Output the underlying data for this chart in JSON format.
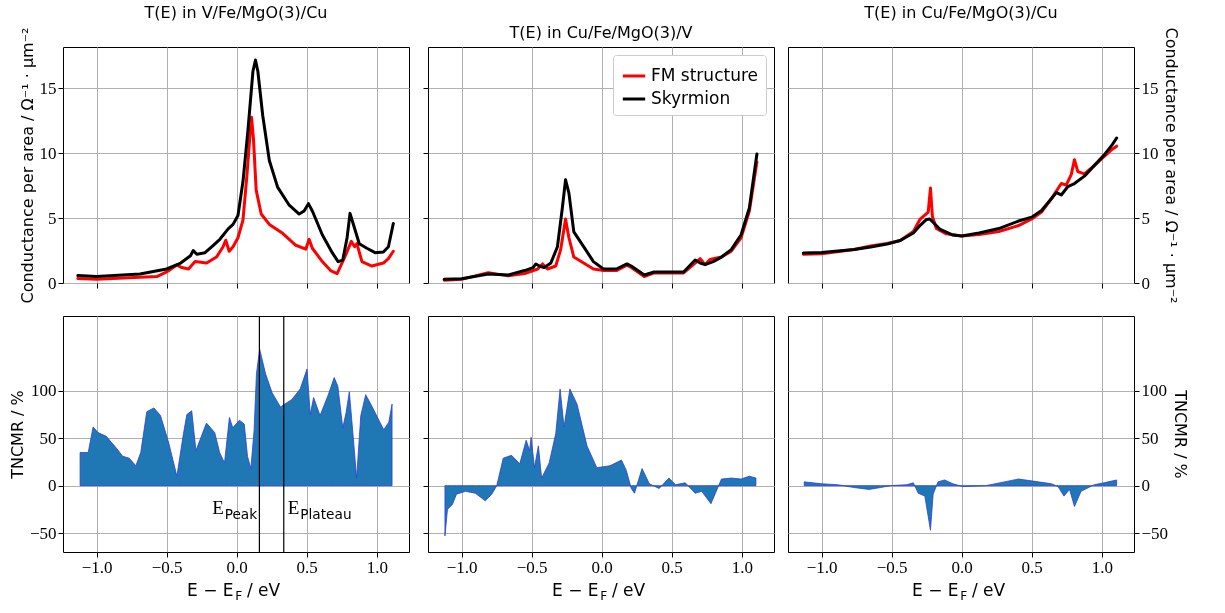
{
  "chart_data": [
    {
      "type": "line",
      "title": "T(E) in V/Fe/MgO(3)/Cu",
      "ylabel": "Conductance per area / Ω⁻¹ · μm⁻²",
      "xlim": [
        -1.24,
        1.23
      ],
      "xticks": [
        -1,
        -0.5,
        0,
        0.5,
        1
      ],
      "ylim": [
        0,
        18.2
      ],
      "yticks": [
        0,
        5,
        10,
        15
      ],
      "grid": true,
      "tick_labels": "y",
      "series": [
        {
          "color": "#ff0000",
          "x": [
            -1.134,
            -1.0,
            -0.69,
            -0.57,
            -0.5,
            -0.427,
            -0.392,
            -0.344,
            -0.297,
            -0.215,
            -0.144,
            -0.097,
            -0.078,
            -0.054,
            -0.026,
            0.009,
            0.045,
            0.073,
            0.097,
            0.106,
            0.12,
            0.139,
            0.175,
            0.233,
            0.328,
            0.422,
            0.493,
            0.517,
            0.54,
            0.611,
            0.67,
            0.717,
            0.776,
            0.818,
            0.842,
            0.858,
            0.894,
            0.965,
            1.047,
            1.083,
            1.118
          ],
          "values": [
            0.34,
            0.28,
            0.44,
            0.5,
            0.85,
            1.38,
            1.19,
            1.08,
            1.65,
            1.54,
            2.0,
            2.8,
            3.3,
            2.45,
            2.8,
            3.49,
            4.86,
            8.3,
            11.74,
            12.78,
            11.06,
            7.16,
            5.32,
            4.52,
            3.83,
            2.91,
            2.61,
            3.37,
            2.68,
            1.65,
            0.96,
            0.73,
            2.11,
            3.21,
            2.8,
            3.03,
            1.65,
            1.31,
            1.54,
            1.88,
            2.45
          ]
        },
        {
          "color": "#000000",
          "x": [
            -1.134,
            -1.0,
            -0.69,
            -0.5,
            -0.4,
            -0.33,
            -0.31,
            -0.285,
            -0.226,
            -0.167,
            -0.12,
            -0.061,
            -0.026,
            0.009,
            0.045,
            0.08,
            0.116,
            0.134,
            0.151,
            0.186,
            0.233,
            0.292,
            0.375,
            0.446,
            0.481,
            0.512,
            0.54,
            0.611,
            0.682,
            0.724,
            0.757,
            0.788,
            0.809,
            0.83,
            0.875,
            0.929,
            0.988,
            1.047,
            1.083,
            1.118
          ],
          "values": [
            0.57,
            0.5,
            0.69,
            1.08,
            1.54,
            2.1,
            2.5,
            2.22,
            2.34,
            2.9,
            3.37,
            4.17,
            4.52,
            5.2,
            7.84,
            11.74,
            16.33,
            17.2,
            16.33,
            12.9,
            9.45,
            7.39,
            6.0,
            5.32,
            5.55,
            6.12,
            5.55,
            3.72,
            2.34,
            1.65,
            1.77,
            3.49,
            5.37,
            4.63,
            3.03,
            2.68,
            2.34,
            2.39,
            2.8,
            4.59
          ]
        }
      ]
    },
    {
      "type": "line",
      "title": "T(E) in Cu/Fe/MgO(3)/V",
      "xlim": [
        -1.24,
        1.23
      ],
      "xticks": [
        -1,
        -0.5,
        0,
        0.5,
        1
      ],
      "ylim": [
        0,
        18.2
      ],
      "yticks": [
        0,
        5,
        10,
        15
      ],
      "grid": true,
      "tick_labels": false,
      "legend": "top right",
      "series": [
        {
          "name": "FM structure",
          "color": "#ff0000",
          "x": [
            -1.124,
            -1.0,
            -0.81,
            -0.667,
            -0.55,
            -0.457,
            -0.422,
            -0.387,
            -0.328,
            -0.293,
            -0.258,
            -0.234,
            -0.199,
            -0.129,
            -0.059,
            0.012,
            0.105,
            0.18,
            0.211,
            0.304,
            0.375,
            0.48,
            0.585,
            0.667,
            0.703,
            0.738,
            0.773,
            0.855,
            0.925,
            0.995,
            1.054,
            1.108
          ],
          "values": [
            0.21,
            0.28,
            0.8,
            0.55,
            0.73,
            1.08,
            1.47,
            1.08,
            1.31,
            2.57,
            4.93,
            3.49,
            2.0,
            1.54,
            1.08,
            0.96,
            0.96,
            1.38,
            1.19,
            0.5,
            0.78,
            0.78,
            0.78,
            1.54,
            1.88,
            1.42,
            1.81,
            2.0,
            2.45,
            3.49,
            5.55,
            9.33
          ]
        },
        {
          "name": "Skyrmion",
          "color": "#000000",
          "x": [
            -1.124,
            -1.0,
            -0.81,
            -0.667,
            -0.55,
            -0.49,
            -0.47,
            -0.445,
            -0.41,
            -0.363,
            -0.316,
            -0.281,
            -0.258,
            -0.234,
            -0.199,
            -0.129,
            -0.059,
            0.012,
            0.105,
            0.18,
            0.211,
            0.304,
            0.375,
            0.48,
            0.585,
            0.667,
            0.703,
            0.738,
            0.796,
            0.855,
            0.925,
            0.995,
            1.054,
            1.108
          ],
          "values": [
            0.28,
            0.32,
            0.69,
            0.62,
            0.96,
            1.19,
            1.47,
            1.31,
            1.19,
            1.54,
            2.8,
            5.78,
            7.96,
            6.93,
            3.94,
            2.8,
            1.65,
            1.08,
            1.08,
            1.47,
            1.31,
            0.62,
            0.85,
            0.85,
            0.85,
            1.77,
            1.54,
            1.42,
            1.65,
            2.0,
            2.57,
            3.72,
            5.78,
            9.95
          ]
        }
      ]
    },
    {
      "type": "line",
      "title": "T(E) in Cu/Fe/MgO(3)/Cu",
      "y2label": "Conductance per area / Ω⁻¹ · μm⁻²",
      "xlim": [
        -1.24,
        1.23
      ],
      "xticks": [
        -1,
        -0.5,
        0,
        0.5,
        1
      ],
      "y2lim": [
        0,
        18.2
      ],
      "y2ticks": [
        0,
        5,
        10,
        15
      ],
      "grid": true,
      "tick_labels": "y",
      "series": [
        {
          "color": "#ff0000",
          "axis": "y2",
          "x": [
            -1.131,
            -1.0,
            -0.768,
            -0.65,
            -0.533,
            -0.439,
            -0.345,
            -0.298,
            -0.263,
            -0.239,
            -0.223,
            -0.209,
            -0.181,
            -0.11,
            0.0,
            0.124,
            0.265,
            0.406,
            0.5,
            0.57,
            0.641,
            0.711,
            0.746,
            0.782,
            0.805,
            0.829,
            0.876,
            0.946,
            1.016,
            1.075,
            1.106
          ],
          "values": [
            2.22,
            2.26,
            2.59,
            2.86,
            3.05,
            3.28,
            3.97,
            4.9,
            5.24,
            5.47,
            7.32,
            5.13,
            4.2,
            3.79,
            3.63,
            3.74,
            3.97,
            4.43,
            4.94,
            5.47,
            6.51,
            7.67,
            7.55,
            8.36,
            9.51,
            8.59,
            8.41,
            9.05,
            9.74,
            10.32,
            10.55
          ]
        },
        {
          "color": "#000000",
          "axis": "y2",
          "x": [
            -1.131,
            -1.0,
            -0.768,
            -0.65,
            -0.533,
            -0.439,
            -0.345,
            -0.298,
            -0.251,
            -0.228,
            -0.192,
            -0.157,
            -0.11,
            -0.063,
            0.0,
            0.124,
            0.265,
            0.406,
            0.5,
            0.57,
            0.641,
            0.676,
            0.711,
            0.758,
            0.805,
            0.876,
            0.946,
            1.016,
            1.075,
            1.106
          ],
          "values": [
            2.31,
            2.36,
            2.59,
            2.77,
            3.0,
            3.28,
            3.86,
            4.43,
            4.9,
            4.94,
            4.55,
            4.16,
            3.93,
            3.7,
            3.63,
            3.86,
            4.2,
            4.78,
            5.08,
            5.59,
            6.51,
            6.97,
            6.79,
            7.44,
            7.67,
            8.24,
            9.05,
            9.86,
            10.67,
            11.18
          ]
        }
      ]
    },
    {
      "type": "area",
      "ylabel": "TNCMR / %",
      "xlabel": "E − E$_{F}$ / eV",
      "xlim": [
        -1.24,
        1.23
      ],
      "xticks": [
        {
          "value": -1.0,
          "label": "−1.0"
        },
        {
          "value": -0.5,
          "label": "−0.5"
        },
        {
          "value": 0.0,
          "label": "0.0"
        },
        0.5,
        {
          "value": 1.0,
          "label": "1.0"
        }
      ],
      "ylim": [
        -70,
        179
      ],
      "yticks": [
        {
          "value": -50,
          "label": "−50"
        },
        0,
        50,
        100
      ],
      "grid": true,
      "ref_lines": [
        {
          "axis": "x",
          "value": 0.162,
          "label": "E$_{Peak}$",
          "color": "#000000"
        },
        {
          "axis": "x",
          "value": 0.336,
          "label": "E$_{Plateau}$",
          "color": "#000000"
        }
      ],
      "series": [
        {
          "color": "#1f77b4",
          "x": [
            -1.118,
            -1.06,
            -1.025,
            -0.99,
            -0.931,
            -0.861,
            -0.814,
            -0.767,
            -0.72,
            -0.685,
            -0.642,
            -0.591,
            -0.544,
            -0.485,
            -0.427,
            -0.38,
            -0.356,
            -0.321,
            -0.291,
            -0.216,
            -0.157,
            -0.122,
            -0.087,
            -0.052,
            -0.028,
            0.019,
            0.054,
            0.077,
            0.101,
            0.124,
            0.141,
            0.164,
            0.206,
            0.253,
            0.312,
            0.394,
            0.453,
            0.502,
            0.525,
            0.549,
            0.595,
            0.654,
            0.696,
            0.722,
            0.757,
            0.781,
            0.804,
            0.828,
            0.856,
            0.886,
            0.921,
            0.968,
            1.015,
            1.05,
            1.086,
            1.109
          ],
          "values": [
            35,
            35,
            62,
            56,
            52,
            40,
            31,
            29,
            21,
            35,
            78,
            82,
            74,
            45,
            10,
            55,
            75,
            79,
            37,
            66,
            56,
            35,
            24,
            72,
            61,
            69,
            65,
            31,
            18,
            58,
            118,
            144,
            118,
            98,
            83,
            91,
            102,
            123,
            75,
            93,
            74,
            96,
            114,
            105,
            61,
            77,
            99,
            58,
            8,
            74,
            96,
            83,
            69,
            59,
            67,
            86
          ]
        }
      ]
    },
    {
      "type": "area",
      "xlabel": "E − E$_{F}$ / eV",
      "xlim": [
        -1.24,
        1.23
      ],
      "xticks": [
        {
          "value": -1.0,
          "label": "−1.0"
        },
        {
          "value": -0.5,
          "label": "−0.5"
        },
        {
          "value": 0.0,
          "label": "0.0"
        },
        0.5,
        {
          "value": 1.0,
          "label": "1.0"
        }
      ],
      "ylim": [
        -70,
        179
      ],
      "yticks": [
        -50,
        0,
        50,
        100
      ],
      "grid": true,
      "tick_labels": "x",
      "series": [
        {
          "color": "#1f77b4",
          "x": [
            -1.119,
            -1.101,
            -1.066,
            -1.037,
            -0.972,
            -0.902,
            -0.831,
            -0.785,
            -0.749,
            -0.703,
            -0.644,
            -0.585,
            -0.539,
            -0.515,
            -0.504,
            -0.48,
            -0.452,
            -0.429,
            -0.375,
            -0.328,
            -0.297,
            -0.269,
            -0.227,
            -0.176,
            -0.105,
            -0.035,
            0.059,
            0.141,
            0.176,
            0.211,
            0.234,
            0.288,
            0.34,
            0.41,
            0.48,
            0.527,
            0.597,
            0.667,
            0.714,
            0.78,
            0.855,
            0.925,
            0.995,
            1.054,
            1.101
          ],
          "values": [
            -53,
            -25,
            -20,
            -9,
            -6,
            -8,
            -16,
            -9,
            0,
            29,
            32,
            23,
            48,
            37,
            51,
            19,
            42,
            8,
            24,
            55,
            102,
            62,
            102,
            86,
            42,
            19,
            21,
            27,
            16,
            -3,
            -8,
            18,
            2,
            -3,
            8,
            1,
            3,
            -8,
            -6,
            -19,
            7,
            8,
            7,
            10,
            8
          ]
        }
      ]
    },
    {
      "type": "area",
      "y2label": "TNCMR / %",
      "xlabel": "E − E$_{F}$ / eV",
      "xlim": [
        -1.24,
        1.23
      ],
      "xticks": [
        {
          "value": -1.0,
          "label": "−1.0"
        },
        {
          "value": -0.5,
          "label": "−0.5"
        },
        {
          "value": 0.0,
          "label": "0.0"
        },
        0.5,
        {
          "value": 1.0,
          "label": "1.0"
        }
      ],
      "y2lim": [
        -70,
        179
      ],
      "y2ticks": [
        {
          "value": -50,
          "label": "−50"
        },
        0,
        50,
        100
      ],
      "grid": true,
      "series": [
        {
          "color": "#1f77b4",
          "axis": "y2",
          "x": [
            -1.124,
            -1.002,
            -0.885,
            -0.768,
            -0.662,
            -0.58,
            -0.509,
            -0.392,
            -0.345,
            -0.31,
            -0.263,
            -0.223,
            -0.204,
            -0.169,
            -0.122,
            -0.063,
            0.007,
            0.171,
            0.406,
            0.547,
            0.641,
            0.688,
            0.73,
            0.77,
            0.805,
            0.852,
            0.946,
            1.016,
            1.106
          ],
          "values": [
            4,
            2,
            1,
            -2,
            -4,
            -2,
            0,
            1,
            3,
            -8,
            -11,
            -47,
            -9,
            4,
            6,
            2,
            -1,
            0,
            7,
            4,
            2,
            -1,
            -11,
            -4,
            -22,
            -6,
            1,
            3,
            6
          ]
        }
      ]
    }
  ]
}
